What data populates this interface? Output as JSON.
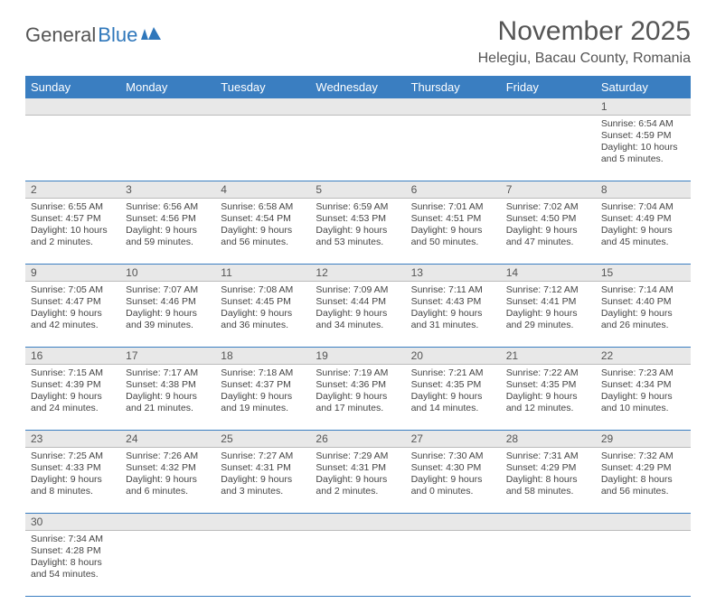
{
  "logo": {
    "general": "General",
    "blue": "Blue"
  },
  "title": "November 2025",
  "location": "Helegiu, Bacau County, Romania",
  "colors": {
    "header_bg": "#3a7ec1",
    "header_text": "#ffffff",
    "daynum_bg": "#e8e8e8",
    "row_border": "#3a7ec1",
    "text": "#444444",
    "title_text": "#555555"
  },
  "day_names": [
    "Sunday",
    "Monday",
    "Tuesday",
    "Wednesday",
    "Thursday",
    "Friday",
    "Saturday"
  ],
  "weeks": [
    {
      "nums": [
        "",
        "",
        "",
        "",
        "",
        "",
        "1"
      ],
      "cells": [
        null,
        null,
        null,
        null,
        null,
        null,
        {
          "sunrise": "Sunrise: 6:54 AM",
          "sunset": "Sunset: 4:59 PM",
          "daylight": "Daylight: 10 hours and 5 minutes."
        }
      ]
    },
    {
      "nums": [
        "2",
        "3",
        "4",
        "5",
        "6",
        "7",
        "8"
      ],
      "cells": [
        {
          "sunrise": "Sunrise: 6:55 AM",
          "sunset": "Sunset: 4:57 PM",
          "daylight": "Daylight: 10 hours and 2 minutes."
        },
        {
          "sunrise": "Sunrise: 6:56 AM",
          "sunset": "Sunset: 4:56 PM",
          "daylight": "Daylight: 9 hours and 59 minutes."
        },
        {
          "sunrise": "Sunrise: 6:58 AM",
          "sunset": "Sunset: 4:54 PM",
          "daylight": "Daylight: 9 hours and 56 minutes."
        },
        {
          "sunrise": "Sunrise: 6:59 AM",
          "sunset": "Sunset: 4:53 PM",
          "daylight": "Daylight: 9 hours and 53 minutes."
        },
        {
          "sunrise": "Sunrise: 7:01 AM",
          "sunset": "Sunset: 4:51 PM",
          "daylight": "Daylight: 9 hours and 50 minutes."
        },
        {
          "sunrise": "Sunrise: 7:02 AM",
          "sunset": "Sunset: 4:50 PM",
          "daylight": "Daylight: 9 hours and 47 minutes."
        },
        {
          "sunrise": "Sunrise: 7:04 AM",
          "sunset": "Sunset: 4:49 PM",
          "daylight": "Daylight: 9 hours and 45 minutes."
        }
      ]
    },
    {
      "nums": [
        "9",
        "10",
        "11",
        "12",
        "13",
        "14",
        "15"
      ],
      "cells": [
        {
          "sunrise": "Sunrise: 7:05 AM",
          "sunset": "Sunset: 4:47 PM",
          "daylight": "Daylight: 9 hours and 42 minutes."
        },
        {
          "sunrise": "Sunrise: 7:07 AM",
          "sunset": "Sunset: 4:46 PM",
          "daylight": "Daylight: 9 hours and 39 minutes."
        },
        {
          "sunrise": "Sunrise: 7:08 AM",
          "sunset": "Sunset: 4:45 PM",
          "daylight": "Daylight: 9 hours and 36 minutes."
        },
        {
          "sunrise": "Sunrise: 7:09 AM",
          "sunset": "Sunset: 4:44 PM",
          "daylight": "Daylight: 9 hours and 34 minutes."
        },
        {
          "sunrise": "Sunrise: 7:11 AM",
          "sunset": "Sunset: 4:43 PM",
          "daylight": "Daylight: 9 hours and 31 minutes."
        },
        {
          "sunrise": "Sunrise: 7:12 AM",
          "sunset": "Sunset: 4:41 PM",
          "daylight": "Daylight: 9 hours and 29 minutes."
        },
        {
          "sunrise": "Sunrise: 7:14 AM",
          "sunset": "Sunset: 4:40 PM",
          "daylight": "Daylight: 9 hours and 26 minutes."
        }
      ]
    },
    {
      "nums": [
        "16",
        "17",
        "18",
        "19",
        "20",
        "21",
        "22"
      ],
      "cells": [
        {
          "sunrise": "Sunrise: 7:15 AM",
          "sunset": "Sunset: 4:39 PM",
          "daylight": "Daylight: 9 hours and 24 minutes."
        },
        {
          "sunrise": "Sunrise: 7:17 AM",
          "sunset": "Sunset: 4:38 PM",
          "daylight": "Daylight: 9 hours and 21 minutes."
        },
        {
          "sunrise": "Sunrise: 7:18 AM",
          "sunset": "Sunset: 4:37 PM",
          "daylight": "Daylight: 9 hours and 19 minutes."
        },
        {
          "sunrise": "Sunrise: 7:19 AM",
          "sunset": "Sunset: 4:36 PM",
          "daylight": "Daylight: 9 hours and 17 minutes."
        },
        {
          "sunrise": "Sunrise: 7:21 AM",
          "sunset": "Sunset: 4:35 PM",
          "daylight": "Daylight: 9 hours and 14 minutes."
        },
        {
          "sunrise": "Sunrise: 7:22 AM",
          "sunset": "Sunset: 4:35 PM",
          "daylight": "Daylight: 9 hours and 12 minutes."
        },
        {
          "sunrise": "Sunrise: 7:23 AM",
          "sunset": "Sunset: 4:34 PM",
          "daylight": "Daylight: 9 hours and 10 minutes."
        }
      ]
    },
    {
      "nums": [
        "23",
        "24",
        "25",
        "26",
        "27",
        "28",
        "29"
      ],
      "cells": [
        {
          "sunrise": "Sunrise: 7:25 AM",
          "sunset": "Sunset: 4:33 PM",
          "daylight": "Daylight: 9 hours and 8 minutes."
        },
        {
          "sunrise": "Sunrise: 7:26 AM",
          "sunset": "Sunset: 4:32 PM",
          "daylight": "Daylight: 9 hours and 6 minutes."
        },
        {
          "sunrise": "Sunrise: 7:27 AM",
          "sunset": "Sunset: 4:31 PM",
          "daylight": "Daylight: 9 hours and 3 minutes."
        },
        {
          "sunrise": "Sunrise: 7:29 AM",
          "sunset": "Sunset: 4:31 PM",
          "daylight": "Daylight: 9 hours and 2 minutes."
        },
        {
          "sunrise": "Sunrise: 7:30 AM",
          "sunset": "Sunset: 4:30 PM",
          "daylight": "Daylight: 9 hours and 0 minutes."
        },
        {
          "sunrise": "Sunrise: 7:31 AM",
          "sunset": "Sunset: 4:29 PM",
          "daylight": "Daylight: 8 hours and 58 minutes."
        },
        {
          "sunrise": "Sunrise: 7:32 AM",
          "sunset": "Sunset: 4:29 PM",
          "daylight": "Daylight: 8 hours and 56 minutes."
        }
      ]
    },
    {
      "nums": [
        "30",
        "",
        "",
        "",
        "",
        "",
        ""
      ],
      "cells": [
        {
          "sunrise": "Sunrise: 7:34 AM",
          "sunset": "Sunset: 4:28 PM",
          "daylight": "Daylight: 8 hours and 54 minutes."
        },
        null,
        null,
        null,
        null,
        null,
        null
      ]
    }
  ]
}
